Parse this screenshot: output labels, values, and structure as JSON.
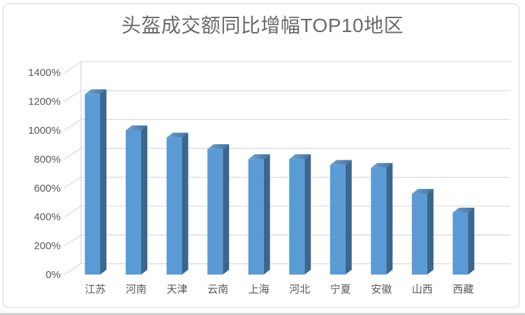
{
  "chart_data": {
    "type": "bar",
    "style_3d": true,
    "title": "头盔成交额同比增幅TOP10地区",
    "categories": [
      "江苏",
      "河南",
      "天津",
      "云南",
      "上海",
      "河北",
      "宁夏",
      "安徽",
      "山西",
      "西藏"
    ],
    "values": [
      1250,
      1000,
      950,
      870,
      800,
      800,
      760,
      740,
      560,
      430
    ],
    "unit": "%",
    "xlabel": "",
    "ylabel": "",
    "ylim": [
      0,
      1400
    ],
    "ytick_step": 200,
    "ytick_labels": [
      "0%",
      "200%",
      "400%",
      "600%",
      "800%",
      "1000%",
      "1200%",
      "1400%"
    ],
    "grid": true,
    "legend": "none",
    "colors": {
      "bar_front": "#5B9BD5",
      "bar_side": "#3A6790",
      "bar_top_light": "#74A3CF",
      "bar_top_dark": "#41719C",
      "gridline": "#D9D9D9",
      "axis_text": "#595959",
      "title_text": "#6A6A6A",
      "frame_border": "#D8D8D8"
    }
  }
}
